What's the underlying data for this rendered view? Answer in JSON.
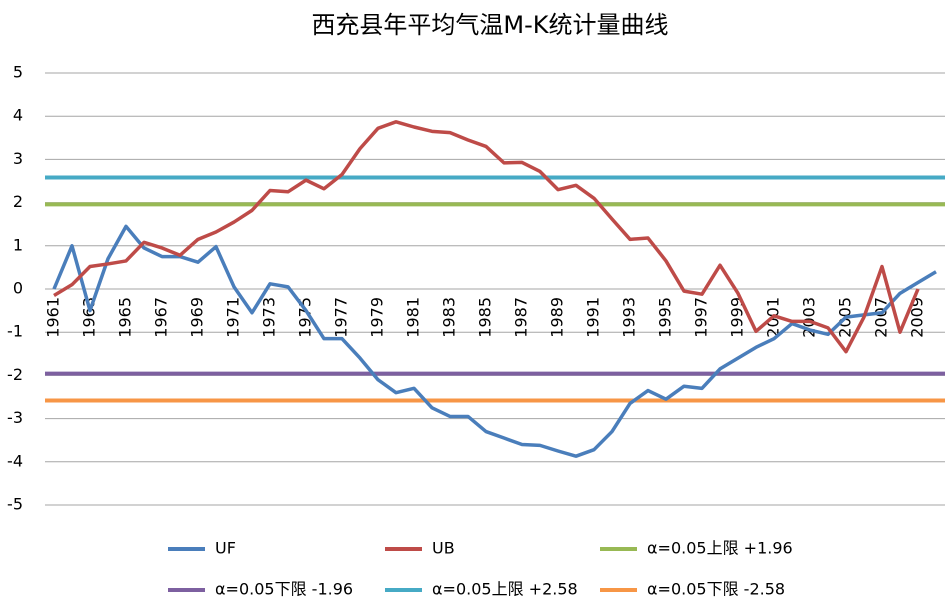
{
  "chart_data": {
    "type": "line",
    "title": "西充县年平均气温M-K统计量曲线",
    "categories": [
      "1961",
      null,
      "1963",
      null,
      "1965",
      null,
      "1967",
      null,
      "1969",
      null,
      "1971",
      null,
      "1973",
      null,
      "1975",
      null,
      "1977",
      null,
      "1979",
      null,
      "1981",
      null,
      "1983",
      null,
      "1985",
      null,
      "1987",
      null,
      "1989",
      null,
      "1991",
      null,
      "1993",
      null,
      "1995",
      null,
      "1997",
      null,
      "1999",
      null,
      "2001",
      null,
      "2003",
      null,
      "2005",
      null,
      "2007",
      null,
      "2009",
      null
    ],
    "series": [
      {
        "name": "UF",
        "color": "#4a7ebb",
        "values": [
          0,
          1.0,
          -0.5,
          0.7,
          1.45,
          0.95,
          0.75,
          0.75,
          0.62,
          0.98,
          0.05,
          -0.55,
          0.12,
          0.05,
          -0.5,
          -1.15,
          -1.15,
          -1.6,
          -2.1,
          -2.4,
          -2.3,
          -2.75,
          -2.95,
          -2.95,
          -3.3,
          -3.45,
          -3.6,
          -3.62,
          -3.75,
          -3.87,
          -3.72,
          -3.3,
          -2.65,
          -2.35,
          -2.55,
          -2.25,
          -2.3,
          -1.85,
          -1.6,
          -1.35,
          -1.15,
          -0.8,
          -0.95,
          -1.05,
          -0.65,
          -0.6,
          -0.55,
          -0.1,
          0.15,
          0.4
        ]
      },
      {
        "name": "UB",
        "color": "#be4b48",
        "values": [
          -0.15,
          0.1,
          0.52,
          0.58,
          0.65,
          1.08,
          0.95,
          0.78,
          1.15,
          1.32,
          1.55,
          1.82,
          2.28,
          2.25,
          2.52,
          2.32,
          2.65,
          3.25,
          3.72,
          3.87,
          3.75,
          3.65,
          3.62,
          3.45,
          3.3,
          2.92,
          2.93,
          2.72,
          2.3,
          2.4,
          2.1,
          1.62,
          1.15,
          1.18,
          0.65,
          -0.05,
          -0.12,
          0.55,
          -0.1,
          -0.98,
          -0.62,
          -0.75,
          -0.75,
          -0.9,
          -1.45,
          -0.65,
          0.52,
          -1.0,
          0.0,
          null
        ]
      }
    ],
    "reference_lines": [
      {
        "name": "α=0.05上限 +1.96",
        "color": "#98b954",
        "value": 1.96
      },
      {
        "name": "α=0.05下限 -1.96",
        "color": "#7d60a0",
        "value": -1.96
      },
      {
        "name": "α=0.05上限 +2.58",
        "color": "#46aac5",
        "value": 2.58
      },
      {
        "name": "α=0.05下限 -2.58",
        "color": "#f79646",
        "value": -2.58
      }
    ],
    "ylim": [
      -5,
      5
    ],
    "yticks": [
      -5,
      -4,
      -3,
      -2,
      -1,
      0,
      1,
      2,
      3,
      4,
      5
    ],
    "grid": true,
    "legend": "bottom"
  }
}
